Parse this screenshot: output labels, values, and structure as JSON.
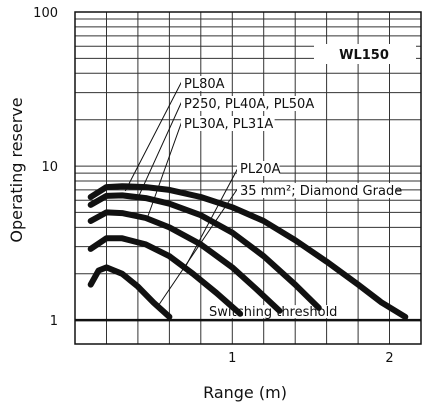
{
  "chart_data": {
    "type": "line",
    "badge": "WL150",
    "xlabel": "Range (m)",
    "ylabel": "Operating reserve",
    "xscale": "linear",
    "yscale": "log",
    "xlim": [
      0,
      2.2
    ],
    "ylim": [
      0.7,
      100
    ],
    "xticks": [
      {
        "v": 1,
        "label": "1"
      },
      {
        "v": 2,
        "label": "2"
      }
    ],
    "yticks": [
      {
        "v": 1,
        "label": "1"
      },
      {
        "v": 10,
        "label": "10"
      },
      {
        "v": 100,
        "label": "100"
      }
    ],
    "grid": true,
    "threshold": {
      "value": 1,
      "label": "Switching threshold"
    },
    "series": [
      {
        "name": "PL80A",
        "x": [
          0.1,
          0.2,
          0.3,
          0.45,
          0.6,
          0.8,
          1.0,
          1.2,
          1.4,
          1.6,
          1.8,
          1.95,
          2.1
        ],
        "y": [
          6.3,
          7.3,
          7.4,
          7.3,
          7.0,
          6.3,
          5.4,
          4.4,
          3.3,
          2.4,
          1.7,
          1.3,
          1.05
        ]
      },
      {
        "name": "P250, PL40A, PL50A",
        "x": [
          0.1,
          0.2,
          0.3,
          0.45,
          0.6,
          0.8,
          1.0,
          1.2,
          1.4,
          1.55
        ],
        "y": [
          5.6,
          6.4,
          6.45,
          6.2,
          5.7,
          4.8,
          3.7,
          2.6,
          1.7,
          1.2
        ]
      },
      {
        "name": "PL30A, PL31A",
        "x": [
          0.1,
          0.2,
          0.3,
          0.45,
          0.6,
          0.8,
          1.0,
          1.15,
          1.3
        ],
        "y": [
          4.4,
          5.0,
          4.95,
          4.6,
          4.0,
          3.1,
          2.2,
          1.6,
          1.15
        ]
      },
      {
        "name": "PL20A",
        "x": [
          0.1,
          0.2,
          0.3,
          0.45,
          0.6,
          0.75,
          0.9,
          1.05
        ],
        "y": [
          2.9,
          3.4,
          3.4,
          3.1,
          2.6,
          2.0,
          1.5,
          1.1
        ]
      },
      {
        "name": "35 mm²; Diamond Grade",
        "x": [
          0.1,
          0.15,
          0.2,
          0.3,
          0.4,
          0.5,
          0.6
        ],
        "y": [
          1.7,
          2.1,
          2.2,
          2.0,
          1.65,
          1.3,
          1.05
        ]
      }
    ],
    "callouts": [
      {
        "lines": [
          "PL80A"
        ],
        "series": 0
      },
      {
        "lines": [
          "P250, PL40A, PL50A"
        ],
        "series": 1
      },
      {
        "lines": [
          "PL30A, PL31A"
        ],
        "series": 2
      },
      {
        "lines": [
          "PL20A"
        ],
        "series": 3
      },
      {
        "lines": [
          "35 mm²; Diamond Grade"
        ],
        "series": 4
      }
    ]
  }
}
